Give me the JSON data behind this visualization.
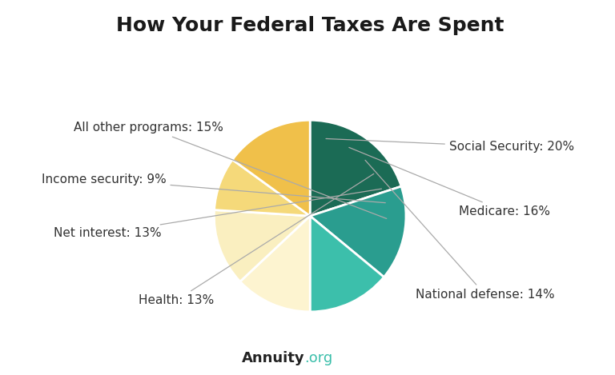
{
  "title": "How Your Federal Taxes Are Spent",
  "watermark_bold": "Annuity",
  "watermark_light": ".org",
  "slices": [
    {
      "label": "Social Security: 20%",
      "value": 20,
      "color": "#1b6b55"
    },
    {
      "label": "Medicare: 16%",
      "value": 16,
      "color": "#2a9d8f"
    },
    {
      "label": "National defense: 14%",
      "value": 14,
      "color": "#3cbfab"
    },
    {
      "label": "Health: 13%",
      "value": 13,
      "color": "#fdf4d0"
    },
    {
      "label": "Net interest: 13%",
      "value": 13,
      "color": "#faefc0"
    },
    {
      "label": "Income security: 9%",
      "value": 9,
      "color": "#f5d97a"
    },
    {
      "label": "All other programs: 15%",
      "value": 15,
      "color": "#f0c04a"
    }
  ],
  "start_angle": 90,
  "counterclock": false,
  "background_color": "#ffffff",
  "title_fontsize": 18,
  "label_fontsize": 11,
  "wedge_edge_color": "#ffffff",
  "wedge_edge_width": 2.0,
  "label_color": "#333333",
  "line_color": "#aaaaaa",
  "watermark_bold_color": "#222222",
  "watermark_light_color": "#3cbfab"
}
